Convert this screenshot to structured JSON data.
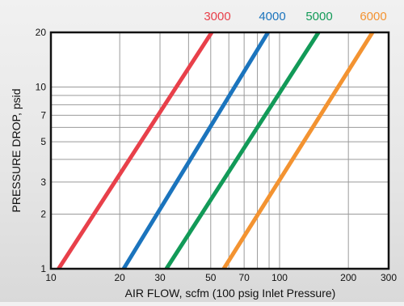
{
  "chart_data": {
    "type": "line",
    "title": "",
    "xlabel": "AIR FLOW, scfm (100 psig Inlet Pressure)",
    "ylabel": "PRESSURE DROP, psid",
    "x_scale": "log",
    "y_scale": "log",
    "xlim": [
      10,
      300
    ],
    "ylim": [
      1,
      20
    ],
    "x_ticks": [
      10,
      20,
      30,
      50,
      70,
      100,
      200,
      300
    ],
    "x_tick_labels": [
      "10",
      "20",
      "30",
      "50",
      "70",
      "100",
      "200",
      "300"
    ],
    "y_ticks": [
      1,
      2,
      3,
      5,
      7,
      10,
      20
    ],
    "y_tick_labels": [
      "1",
      "2",
      "3",
      "5",
      "7",
      "10",
      "20"
    ],
    "grid": true,
    "legend_position": "top-right",
    "series": [
      {
        "name": "3000",
        "color": "#e8404a",
        "x": [
          10.8,
          50.5
        ],
        "y": [
          1,
          20
        ]
      },
      {
        "name": "4000",
        "color": "#1b74bd",
        "x": [
          20.8,
          89
        ],
        "y": [
          1,
          20
        ]
      },
      {
        "name": "5000",
        "color": "#129a58",
        "x": [
          32,
          148
        ],
        "y": [
          1,
          20
        ]
      },
      {
        "name": "6000",
        "color": "#f39331",
        "x": [
          57,
          255
        ],
        "y": [
          1,
          20
        ]
      }
    ]
  }
}
